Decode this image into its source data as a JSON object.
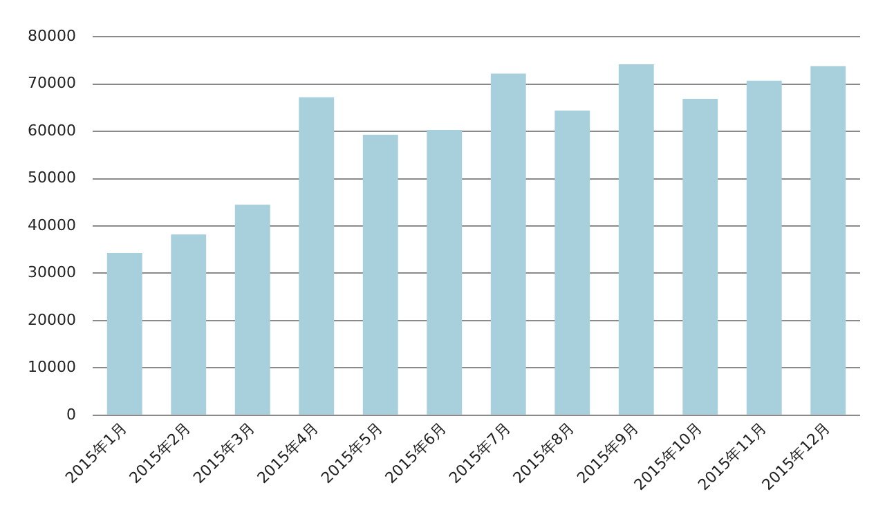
{
  "chart_data": {
    "type": "bar",
    "categories": [
      "2015年1月",
      "2015年2月",
      "2015年3月",
      "2015年4月",
      "2015年5月",
      "2015年6月",
      "2015年7月",
      "2015年8月",
      "2015年9月",
      "2015年10月",
      "2015年11月",
      "2015年12月"
    ],
    "values": [
      34300,
      38200,
      44500,
      67200,
      59300,
      60300,
      72200,
      64400,
      74200,
      66900,
      70700,
      73800
    ],
    "color": "#a8cfdc",
    "ylim": [
      0,
      80000
    ],
    "yticks": [
      0,
      10000,
      20000,
      30000,
      40000,
      50000,
      60000,
      70000,
      80000
    ],
    "grid": "y",
    "legend": false
  }
}
